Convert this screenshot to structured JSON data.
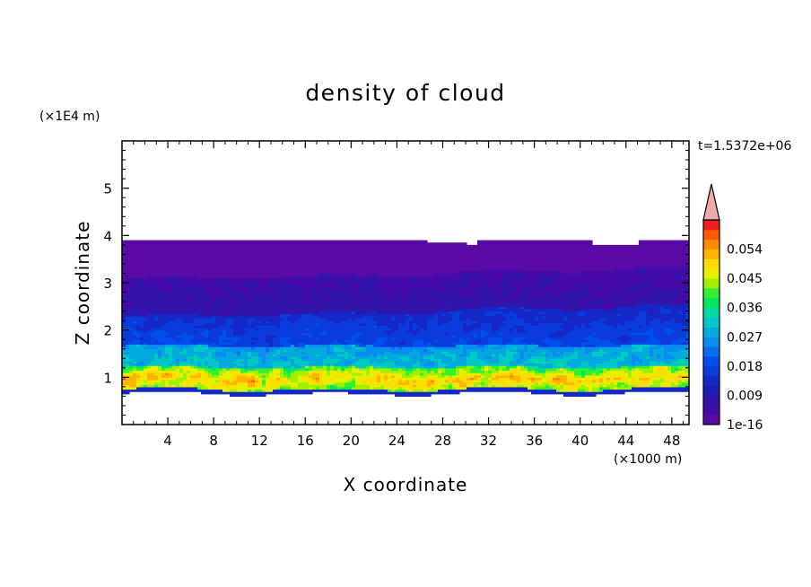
{
  "chart_data": {
    "type": "heatmap",
    "title": "density of cloud",
    "xlabel": "X coordinate",
    "ylabel": "Z coordinate",
    "x_unit": "(×1000 m)",
    "y_unit": "(×1E4 m)",
    "time_label": "t=1.5372e+06",
    "xlim": [
      0,
      49.5
    ],
    "ylim": [
      0,
      6.0
    ],
    "x_ticks": [
      4,
      8,
      12,
      16,
      20,
      24,
      28,
      32,
      36,
      40,
      44,
      48
    ],
    "y_ticks": [
      1,
      2,
      3,
      4,
      5
    ],
    "colorbar": {
      "tick_labels": [
        "1e-16",
        "0.009",
        "0.018",
        "0.027",
        "0.036",
        "0.045",
        "0.054"
      ],
      "levels": [
        0,
        0.003,
        0.006,
        0.009,
        0.012,
        0.015,
        0.018,
        0.021,
        0.024,
        0.027,
        0.03,
        0.033,
        0.036,
        0.039,
        0.042,
        0.045,
        0.048,
        0.051,
        0.054,
        0.057,
        0.06
      ],
      "colors": [
        "#5a0aa5",
        "#460aa8",
        "#3214a8",
        "#1e1eb4",
        "#1428c8",
        "#0a3cdc",
        "#0050f0",
        "#0a6ef0",
        "#0a8cf0",
        "#00aadc",
        "#00c8c8",
        "#00dca0",
        "#00e664",
        "#32f032",
        "#a0f000",
        "#e6f000",
        "#ffdc00",
        "#ffb400",
        "#ff8c00",
        "#ff5a00",
        "#f01e1e"
      ],
      "extend_color": "#f0aaaa"
    },
    "field_description_levels": {
      "cloud_top_z": 3.9,
      "cloud_base_z": 0.65
    }
  }
}
